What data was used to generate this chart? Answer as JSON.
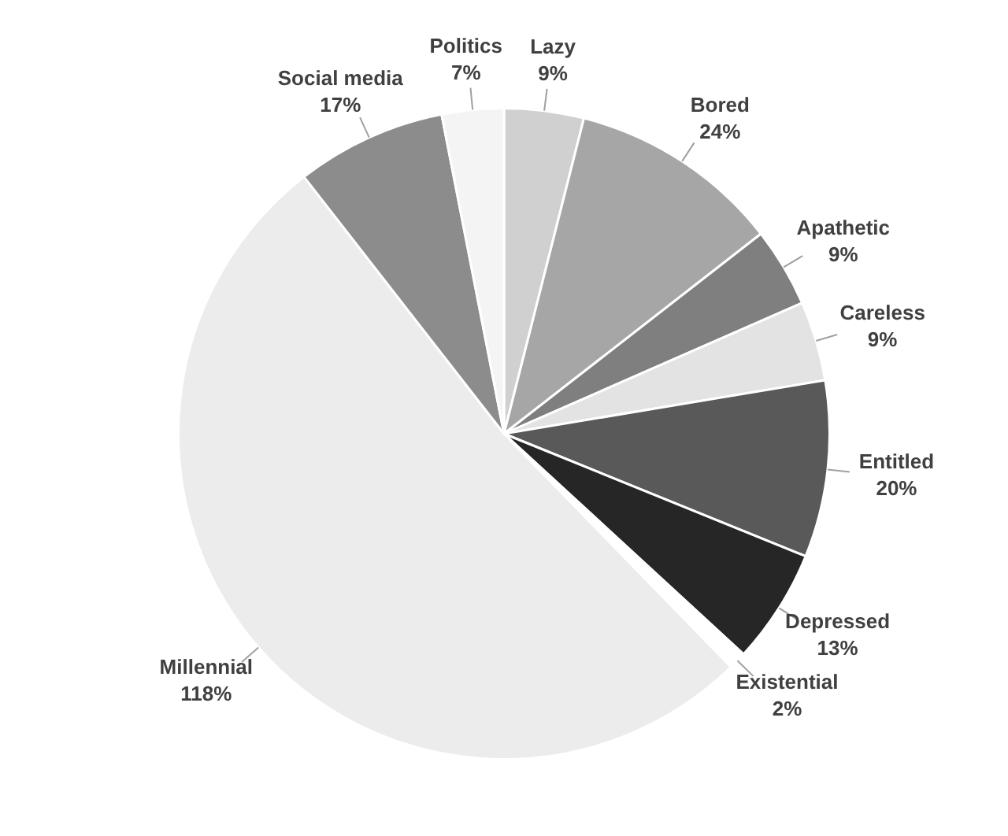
{
  "chart_data": {
    "type": "pie",
    "categories": [
      "Lazy",
      "Bored",
      "Apathetic",
      "Careless",
      "Entitled",
      "Depressed",
      "Existential",
      "Millennial",
      "Social media",
      "Politics"
    ],
    "values": [
      9,
      24,
      9,
      9,
      20,
      13,
      2,
      118,
      17,
      7
    ],
    "value_labels": [
      "9%",
      "24%",
      "9%",
      "9%",
      "20%",
      "13%",
      "2%",
      "118%",
      "17%",
      "7%"
    ],
    "colors": [
      "#d0d0d0",
      "#a6a6a6",
      "#7f7f7f",
      "#e3e3e3",
      "#595959",
      "#262626",
      "#ffffff",
      "#ececec",
      "#8c8c8c",
      "#f4f4f4"
    ],
    "legend": false
  }
}
